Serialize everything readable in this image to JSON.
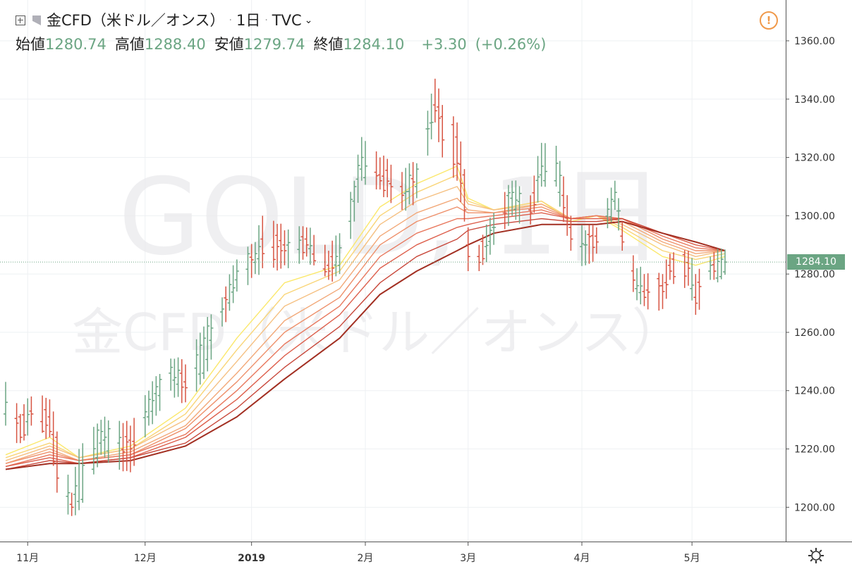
{
  "header": {
    "symbol": "金CFD（米ドル／オンス）",
    "interval": "1日",
    "source": "TVC",
    "open_label": "始値",
    "open": "1280.74",
    "high_label": "高値",
    "high": "1288.40",
    "low_label": "安値",
    "low": "1279.74",
    "close_label": "終値",
    "close": "1284.10",
    "change": "+3.30",
    "change_pct": "(+0.26%)"
  },
  "alert_icon": "alert-circle-icon",
  "settings_icon": "gear-icon",
  "watermark": {
    "line1": "GOLD, 1日",
    "line2": "金CFD（米ドル／オンス）"
  },
  "colors": {
    "up": "#6ba583",
    "down": "#d75442",
    "ma_ribbon": [
      "#fbe86c",
      "#f9d577",
      "#f5c082",
      "#f2a878",
      "#ee906b",
      "#e8785e",
      "#dd5f4c",
      "#c8473a",
      "#a22f22"
    ]
  },
  "chart_data": {
    "type": "ohlc",
    "title": "金CFD（米ドル／オンス）",
    "interval": "1日",
    "yaxis": {
      "ticks": [
        1200,
        1220,
        1240,
        1260,
        1280,
        1300,
        1320,
        1340,
        1360
      ],
      "range": [
        1188,
        1374
      ],
      "position": "right"
    },
    "xaxis": {
      "tick_labels": [
        "11月",
        "12月",
        "2019",
        "2月",
        "3月",
        "4月",
        "5月"
      ],
      "tick_dates": [
        "2018-11-01",
        "2018-12-03",
        "2019-01-01",
        "2019-02-01",
        "2019-03-01",
        "2019-04-01",
        "2019-05-01"
      ],
      "range": [
        "2018-10-26",
        "2019-05-20"
      ]
    },
    "last_price": 1284.1,
    "anchors": [
      [
        "2018-10-26",
        1232,
        1243,
        1228,
        1236
      ],
      [
        "2018-10-30",
        1231,
        1232,
        1222,
        1224
      ],
      [
        "2018-11-02",
        1233,
        1238,
        1228,
        1232
      ],
      [
        "2018-11-07",
        1231,
        1237,
        1224,
        1226
      ],
      [
        "2018-11-09",
        1224,
        1226,
        1205,
        1210
      ],
      [
        "2018-11-13",
        1201,
        1205,
        1197,
        1200
      ],
      [
        "2018-11-15",
        1202,
        1220,
        1199,
        1215
      ],
      [
        "2018-11-21",
        1222,
        1230,
        1218,
        1226
      ],
      [
        "2018-11-29",
        1223,
        1228,
        1212,
        1220
      ],
      [
        "2018-12-04",
        1231,
        1240,
        1228,
        1237
      ],
      [
        "2018-12-10",
        1246,
        1251,
        1240,
        1248
      ],
      [
        "2018-12-14",
        1243,
        1249,
        1236,
        1241
      ],
      [
        "2018-12-19",
        1246,
        1262,
        1244,
        1258
      ],
      [
        "2018-12-24",
        1267,
        1272,
        1262,
        1268
      ],
      [
        "2018-12-28",
        1278,
        1285,
        1274,
        1281
      ],
      [
        "2019-01-02",
        1284,
        1291,
        1280,
        1287
      ],
      [
        "2019-01-04",
        1292,
        1300,
        1282,
        1287
      ],
      [
        "2019-01-10",
        1290,
        1295,
        1283,
        1288
      ],
      [
        "2019-01-16",
        1292,
        1296,
        1286,
        1290
      ],
      [
        "2019-01-22",
        1283,
        1288,
        1278,
        1281
      ],
      [
        "2019-01-25",
        1283,
        1294,
        1280,
        1289
      ],
      [
        "2019-01-29",
        1305,
        1312,
        1298,
        1310
      ],
      [
        "2019-01-31",
        1316,
        1327,
        1312,
        1320
      ],
      [
        "2019-02-05",
        1314,
        1320,
        1309,
        1312
      ],
      [
        "2019-02-11",
        1310,
        1315,
        1302,
        1307
      ],
      [
        "2019-02-15",
        1310,
        1318,
        1306,
        1316
      ],
      [
        "2019-02-20",
        1338,
        1347,
        1332,
        1336
      ],
      [
        "2019-02-22",
        1334,
        1338,
        1320,
        1326
      ],
      [
        "2019-02-26",
        1327,
        1332,
        1312,
        1318
      ],
      [
        "2019-02-28",
        1314,
        1316,
        1298,
        1302
      ],
      [
        "2019-03-01",
        1290,
        1296,
        1281,
        1286
      ],
      [
        "2019-03-04",
        1286,
        1290,
        1281,
        1284
      ],
      [
        "2019-03-08",
        1296,
        1301,
        1290,
        1296
      ],
      [
        "2019-03-13",
        1306,
        1312,
        1300,
        1308
      ],
      [
        "2019-03-18",
        1302,
        1307,
        1297,
        1301
      ],
      [
        "2019-03-21",
        1314,
        1325,
        1310,
        1317
      ],
      [
        "2019-03-25",
        1312,
        1324,
        1310,
        1318
      ],
      [
        "2019-03-29",
        1296,
        1300,
        1288,
        1292
      ],
      [
        "2019-04-02",
        1290,
        1295,
        1283,
        1290
      ],
      [
        "2019-04-05",
        1293,
        1296,
        1287,
        1291
      ],
      [
        "2019-04-10",
        1305,
        1312,
        1302,
        1308
      ],
      [
        "2019-04-12",
        1293,
        1298,
        1288,
        1291
      ],
      [
        "2019-04-16",
        1275,
        1282,
        1271,
        1276
      ],
      [
        "2019-04-18",
        1274,
        1280,
        1269,
        1272
      ],
      [
        "2019-04-23",
        1276,
        1280,
        1268,
        1274
      ],
      [
        "2019-04-25",
        1283,
        1287,
        1278,
        1281
      ],
      [
        "2019-04-30",
        1284,
        1288,
        1276,
        1282
      ],
      [
        "2019-05-02",
        1272,
        1280,
        1266,
        1270
      ],
      [
        "2019-05-06",
        1281,
        1286,
        1278,
        1283
      ],
      [
        "2019-05-10",
        1280.74,
        1288.4,
        1279.74,
        1284.1
      ]
    ],
    "ma_ribbon": {
      "dates": [
        "2018-10-26",
        "2018-11-07",
        "2018-11-15",
        "2018-11-29",
        "2018-12-14",
        "2018-12-28",
        "2019-01-10",
        "2019-01-25",
        "2019-02-05",
        "2019-02-15",
        "2019-02-26",
        "2019-03-01",
        "2019-03-08",
        "2019-03-21",
        "2019-03-29",
        "2019-04-05",
        "2019-04-12",
        "2019-04-23",
        "2019-05-02",
        "2019-05-10"
      ],
      "series": [
        {
          "values": [
            1218,
            1224,
            1217,
            1221,
            1234,
            1258,
            1277,
            1283,
            1303,
            1311,
            1317,
            1306,
            1302,
            1305,
            1298,
            1300,
            1295,
            1286,
            1283,
            1286
          ]
        },
        {
          "values": [
            1217,
            1222,
            1217,
            1220,
            1232,
            1254,
            1273,
            1281,
            1300,
            1308,
            1314,
            1305,
            1302,
            1305,
            1299,
            1300,
            1296,
            1288,
            1285,
            1287
          ]
        },
        {
          "values": [
            1216,
            1221,
            1217,
            1220,
            1230,
            1250,
            1269,
            1278,
            1297,
            1305,
            1310,
            1304,
            1302,
            1304,
            1299,
            1300,
            1297,
            1290,
            1286,
            1288
          ]
        },
        {
          "values": [
            1215,
            1220,
            1216,
            1219,
            1228,
            1246,
            1264,
            1275,
            1293,
            1301,
            1306,
            1302,
            1301,
            1304,
            1299,
            1300,
            1298,
            1291,
            1287,
            1288
          ]
        },
        {
          "values": [
            1215,
            1219,
            1216,
            1218,
            1227,
            1243,
            1260,
            1272,
            1290,
            1298,
            1303,
            1301,
            1301,
            1303,
            1299,
            1300,
            1299,
            1292,
            1288,
            1288
          ]
        },
        {
          "values": [
            1214,
            1218,
            1216,
            1218,
            1225,
            1240,
            1256,
            1269,
            1286,
            1294,
            1299,
            1299,
            1300,
            1302,
            1299,
            1300,
            1299,
            1293,
            1289,
            1288
          ]
        },
        {
          "values": [
            1214,
            1217,
            1215,
            1217,
            1224,
            1237,
            1252,
            1266,
            1282,
            1290,
            1296,
            1297,
            1299,
            1301,
            1299,
            1299,
            1299,
            1294,
            1290,
            1288
          ]
        },
        {
          "values": [
            1213,
            1216,
            1215,
            1217,
            1222,
            1234,
            1248,
            1262,
            1277,
            1286,
            1292,
            1295,
            1297,
            1299,
            1298,
            1298,
            1299,
            1294,
            1291,
            1288
          ]
        },
        {
          "values": [
            1213,
            1215,
            1215,
            1216,
            1221,
            1231,
            1244,
            1258,
            1273,
            1281,
            1288,
            1290,
            1294,
            1297,
            1297,
            1297,
            1298,
            1294,
            1291,
            1288
          ]
        }
      ]
    }
  }
}
